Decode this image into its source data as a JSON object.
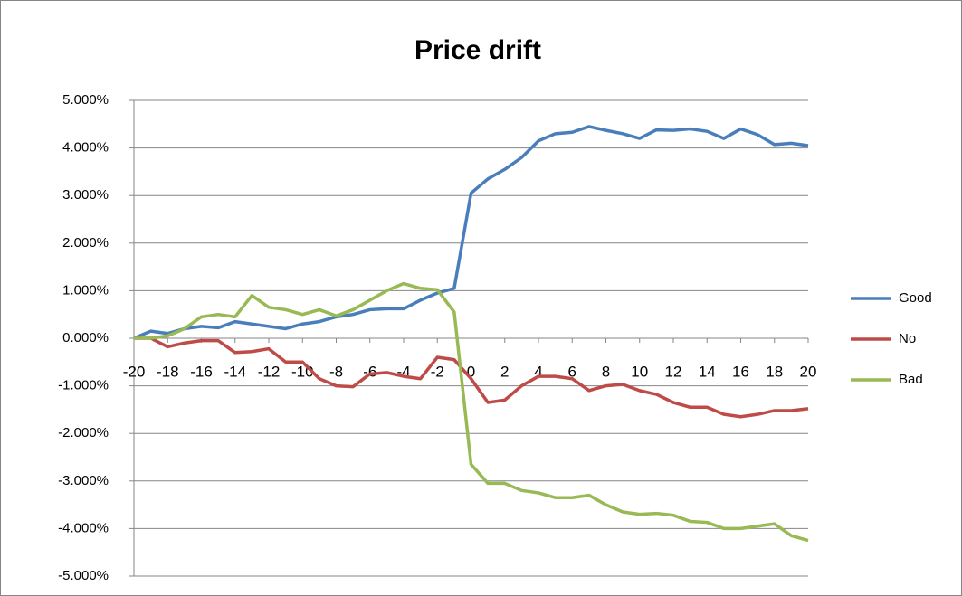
{
  "chart_data": {
    "type": "line",
    "title": "Price drift",
    "x": [
      -20,
      -19,
      -18,
      -17,
      -16,
      -15,
      -14,
      -13,
      -12,
      -11,
      -10,
      -9,
      -8,
      -7,
      -6,
      -5,
      -4,
      -3,
      -2,
      -1,
      0,
      1,
      2,
      3,
      4,
      5,
      6,
      7,
      8,
      9,
      10,
      11,
      12,
      13,
      14,
      15,
      16,
      17,
      18,
      19,
      20
    ],
    "xlim": [
      -20,
      20
    ],
    "xticks": [
      -20,
      -18,
      -16,
      -14,
      -12,
      -10,
      -8,
      -6,
      -4,
      -2,
      0,
      2,
      4,
      6,
      8,
      10,
      12,
      14,
      16,
      18,
      20
    ],
    "ylim": [
      -5,
      5
    ],
    "yticks": [
      {
        "value": -5,
        "label": "-5.000%"
      },
      {
        "value": -4,
        "label": "-4.000%"
      },
      {
        "value": -3,
        "label": "-3.000%"
      },
      {
        "value": -2,
        "label": "-2.000%"
      },
      {
        "value": -1,
        "label": "-1.000%"
      },
      {
        "value": 0,
        "label": "0.000%"
      },
      {
        "value": 1,
        "label": "1.000%"
      },
      {
        "value": 2,
        "label": "2.000%"
      },
      {
        "value": 3,
        "label": "3.000%"
      },
      {
        "value": 4,
        "label": "4.000%"
      },
      {
        "value": 5,
        "label": "5.000%"
      }
    ],
    "grid": true,
    "legend": "right",
    "series": [
      {
        "name": "Good",
        "color": "#4a7ebb",
        "values": [
          0.0,
          0.15,
          0.1,
          0.2,
          0.25,
          0.22,
          0.35,
          0.3,
          0.25,
          0.2,
          0.3,
          0.35,
          0.45,
          0.5,
          0.6,
          0.62,
          0.62,
          0.8,
          0.95,
          1.05,
          3.05,
          3.35,
          3.55,
          3.8,
          4.15,
          4.3,
          4.33,
          4.45,
          4.37,
          4.3,
          4.2,
          4.38,
          4.37,
          4.4,
          4.35,
          4.2,
          4.4,
          4.28,
          4.07,
          4.1,
          4.05
        ]
      },
      {
        "name": "No",
        "color": "#be4b48",
        "values": [
          0.0,
          0.0,
          -0.18,
          -0.1,
          -0.05,
          -0.05,
          -0.3,
          -0.28,
          -0.22,
          -0.5,
          -0.5,
          -0.85,
          -1.0,
          -1.02,
          -0.75,
          -0.72,
          -0.8,
          -0.85,
          -0.4,
          -0.45,
          -0.85,
          -1.35,
          -1.3,
          -1.0,
          -0.8,
          -0.8,
          -0.85,
          -1.1,
          -1.0,
          -0.97,
          -1.1,
          -1.18,
          -1.35,
          -1.45,
          -1.45,
          -1.6,
          -1.65,
          -1.6,
          -1.52,
          -1.52,
          -1.48
        ]
      },
      {
        "name": "Bad",
        "color": "#98b954",
        "values": [
          0.0,
          0.0,
          0.05,
          0.2,
          0.45,
          0.5,
          0.45,
          0.9,
          0.65,
          0.6,
          0.5,
          0.6,
          0.47,
          0.6,
          0.8,
          1.0,
          1.15,
          1.05,
          1.02,
          0.55,
          -2.65,
          -3.05,
          -3.05,
          -3.2,
          -3.25,
          -3.35,
          -3.35,
          -3.3,
          -3.5,
          -3.65,
          -3.7,
          -3.68,
          -3.72,
          -3.85,
          -3.87,
          -4.0,
          -4.0,
          -3.95,
          -3.9,
          -4.15,
          -4.25
        ]
      }
    ]
  }
}
